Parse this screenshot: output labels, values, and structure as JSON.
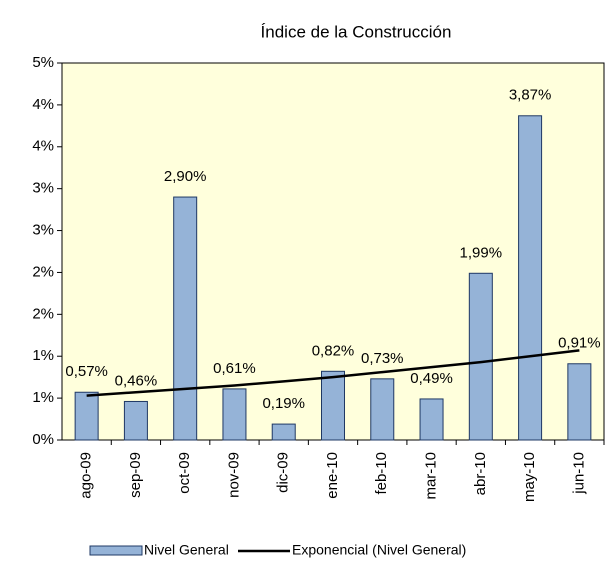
{
  "chart_data": {
    "type": "bar",
    "title": "Índice de la Construcción",
    "categories": [
      "ago-09",
      "sep-09",
      "oct-09",
      "nov-09",
      "dic-09",
      "ene-10",
      "feb-10",
      "mar-10",
      "abr-10",
      "may-10",
      "jun-10"
    ],
    "series": [
      {
        "name": "Nivel General",
        "color": "#95b3d7",
        "values": [
          0.57,
          0.46,
          2.9,
          0.61,
          0.19,
          0.82,
          0.73,
          0.49,
          1.99,
          3.87,
          0.91
        ],
        "value_labels": [
          "0,57%",
          "0,46%",
          "2,90%",
          "0,61%",
          "0,19%",
          "0,82%",
          "0,73%",
          "0,49%",
          "1,99%",
          "3,87%",
          "0,91%"
        ]
      },
      {
        "name": "Exponencial (Nivel General)",
        "type": "line",
        "color": "#000000",
        "values": [
          0.53,
          0.57,
          0.61,
          0.65,
          0.7,
          0.75,
          0.81,
          0.87,
          0.93,
          1.0,
          1.07
        ]
      }
    ],
    "ylim": [
      0,
      4.5
    ],
    "yticks": [
      {
        "value": 0,
        "label": "0%"
      },
      {
        "value": 0.5,
        "label": "1%"
      },
      {
        "value": 1,
        "label": "1%"
      },
      {
        "value": 1.5,
        "label": "2%"
      },
      {
        "value": 2,
        "label": "2%"
      },
      {
        "value": 2.5,
        "label": "3%"
      },
      {
        "value": 3,
        "label": "3%"
      },
      {
        "value": 3.5,
        "label": "4%"
      },
      {
        "value": 4,
        "label": "4%"
      },
      {
        "value": 4.5,
        "label": "5%"
      }
    ],
    "legend": "bottom"
  }
}
